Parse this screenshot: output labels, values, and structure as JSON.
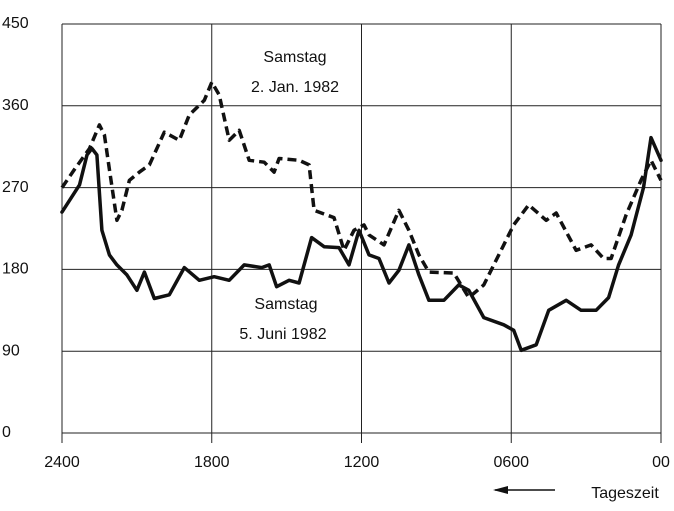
{
  "chart_data": {
    "type": "line",
    "annotations": [
      "Samstag",
      "2. Jan. 1982",
      "Samstag",
      "5. Juni 1982",
      "Tageszeit"
    ],
    "xlim": [
      24,
      0
    ],
    "xticks": [
      {
        "value": 24,
        "label": "2400"
      },
      {
        "value": 18,
        "label": "1800"
      },
      {
        "value": 12,
        "label": "1200"
      },
      {
        "value": 6,
        "label": "0600"
      },
      {
        "value": 0,
        "label": "00"
      }
    ],
    "ylim": [
      0,
      450
    ],
    "yticks": [
      0,
      90,
      180,
      270,
      360,
      450
    ],
    "grid": true,
    "series": [
      {
        "color": "#111111",
        "style": "dashed",
        "x": [
          24.0,
          23.5,
          22.9,
          22.5,
          22.3,
          22.1,
          21.8,
          21.6,
          21.3,
          20.9,
          20.5,
          19.9,
          19.3,
          18.9,
          18.3,
          18.0,
          17.7,
          17.3,
          16.9,
          16.5,
          15.9,
          15.5,
          15.3,
          14.5,
          14.1,
          13.9,
          13.1,
          12.7,
          12.3,
          11.9,
          11.7,
          11.1,
          10.5,
          10.1,
          9.7,
          9.3,
          8.3,
          7.7,
          7.1,
          6.5,
          5.9,
          5.3,
          4.6,
          4.2,
          3.4,
          2.8,
          2.3,
          2.0,
          1.4,
          0.8,
          0.4,
          0.0
        ],
        "values": [
          270,
          290,
          313,
          339,
          328,
          290,
          234,
          245,
          278,
          287,
          295,
          331,
          322,
          350,
          366,
          386,
          372,
          322,
          333,
          300,
          298,
          287,
          302,
          300,
          295,
          245,
          237,
          201,
          223,
          229,
          218,
          207,
          245,
          223,
          196,
          177,
          176,
          149,
          163,
          196,
          229,
          251,
          234,
          242,
          201,
          207,
          192,
          192,
          240,
          278,
          300,
          278
        ]
      },
      {
        "color": "#111111",
        "style": "solid",
        "x": [
          24.0,
          23.3,
          23.0,
          22.8,
          22.6,
          22.4,
          22.1,
          21.8,
          21.4,
          21.0,
          20.7,
          20.3,
          19.7,
          19.1,
          18.5,
          17.9,
          17.3,
          16.7,
          16.0,
          15.7,
          15.4,
          14.9,
          14.5,
          14.0,
          13.5,
          12.9,
          12.5,
          12.1,
          11.7,
          11.3,
          10.9,
          10.5,
          10.1,
          9.7,
          9.3,
          8.7,
          8.1,
          7.7,
          7.1,
          6.3,
          5.9,
          5.6,
          5.0,
          4.5,
          3.8,
          3.2,
          2.6,
          2.1,
          1.7,
          1.2,
          0.7,
          0.4,
          0.0
        ],
        "values": [
          243,
          273,
          306,
          313,
          306,
          223,
          196,
          185,
          174,
          157,
          177,
          148,
          152,
          182,
          168,
          172,
          168,
          185,
          182,
          185,
          161,
          168,
          165,
          215,
          205,
          204,
          185,
          223,
          196,
          192,
          165,
          179,
          207,
          174,
          146,
          146,
          163,
          157,
          127,
          119,
          113,
          91,
          97,
          135,
          146,
          135,
          135,
          149,
          185,
          218,
          270,
          325,
          300
        ]
      }
    ]
  }
}
